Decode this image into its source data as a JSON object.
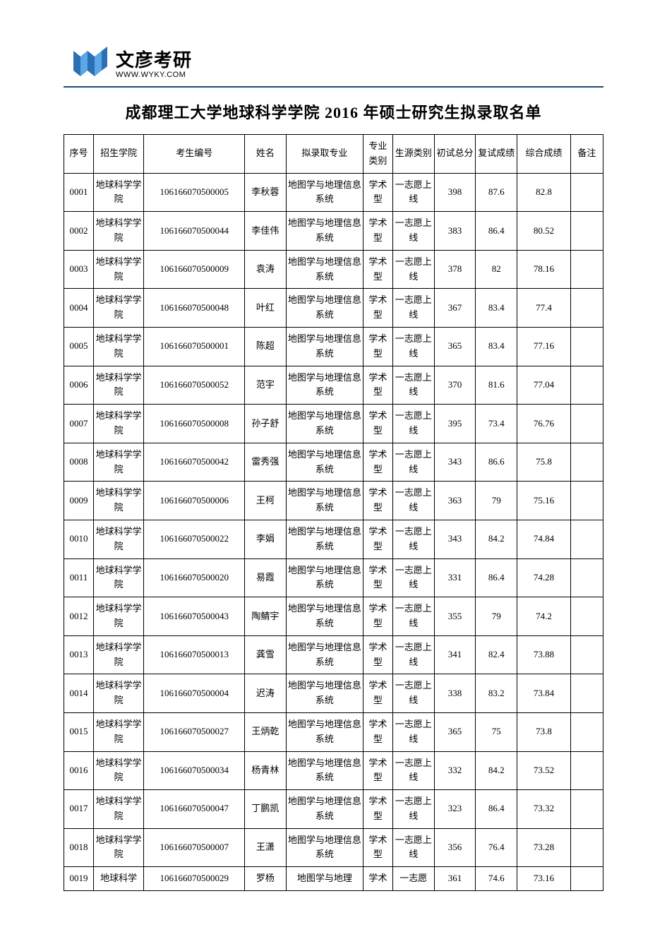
{
  "logo": {
    "cn": "文彦考研",
    "en": "WWW.WYKY.COM",
    "colors": {
      "primary": "#2b6fb5",
      "accent": "#5aa6e6",
      "dark": "#1a4a7a"
    }
  },
  "title": "成都理工大学地球科学学院 2016 年硕士研究生拟录取名单",
  "table": {
    "columns": [
      "序号",
      "招生学院",
      "考生编号",
      "姓名",
      "拟录取专业",
      "专业类别",
      "生源类别",
      "初试总分",
      "复试成绩",
      "综合成绩",
      "备注"
    ],
    "col_widths_pct": [
      5,
      8.5,
      17,
      7,
      13,
      5,
      7,
      7,
      7,
      9,
      5.5
    ],
    "header_fontsize": 13,
    "cell_fontsize": 13,
    "border_color": "#000000",
    "background": "#ffffff",
    "rows": [
      [
        "0001",
        "地球科学学院",
        "106166070500005",
        "李秋蓉",
        "地图学与地理信息系统",
        "学术型",
        "一志愿上线",
        "398",
        "87.6",
        "82.8",
        ""
      ],
      [
        "0002",
        "地球科学学院",
        "106166070500044",
        "李佳伟",
        "地图学与地理信息系统",
        "学术型",
        "一志愿上线",
        "383",
        "86.4",
        "80.52",
        ""
      ],
      [
        "0003",
        "地球科学学院",
        "106166070500009",
        "袁涛",
        "地图学与地理信息系统",
        "学术型",
        "一志愿上线",
        "378",
        "82",
        "78.16",
        ""
      ],
      [
        "0004",
        "地球科学学院",
        "106166070500048",
        "叶红",
        "地图学与地理信息系统",
        "学术型",
        "一志愿上线",
        "367",
        "83.4",
        "77.4",
        ""
      ],
      [
        "0005",
        "地球科学学院",
        "106166070500001",
        "陈超",
        "地图学与地理信息系统",
        "学术型",
        "一志愿上线",
        "365",
        "83.4",
        "77.16",
        ""
      ],
      [
        "0006",
        "地球科学学院",
        "106166070500052",
        "范宇",
        "地图学与地理信息系统",
        "学术型",
        "一志愿上线",
        "370",
        "81.6",
        "77.04",
        ""
      ],
      [
        "0007",
        "地球科学学院",
        "106166070500008",
        "孙子舒",
        "地图学与地理信息系统",
        "学术型",
        "一志愿上线",
        "395",
        "73.4",
        "76.76",
        ""
      ],
      [
        "0008",
        "地球科学学院",
        "106166070500042",
        "雷秀强",
        "地图学与地理信息系统",
        "学术型",
        "一志愿上线",
        "343",
        "86.6",
        "75.8",
        ""
      ],
      [
        "0009",
        "地球科学学院",
        "106166070500006",
        "王柯",
        "地图学与地理信息系统",
        "学术型",
        "一志愿上线",
        "363",
        "79",
        "75.16",
        ""
      ],
      [
        "0010",
        "地球科学学院",
        "106166070500022",
        "李娟",
        "地图学与地理信息系统",
        "学术型",
        "一志愿上线",
        "343",
        "84.2",
        "74.84",
        ""
      ],
      [
        "0011",
        "地球科学学院",
        "106166070500020",
        "易霞",
        "地图学与地理信息系统",
        "学术型",
        "一志愿上线",
        "331",
        "86.4",
        "74.28",
        ""
      ],
      [
        "0012",
        "地球科学学院",
        "106166070500043",
        "陶鲭宇",
        "地图学与地理信息系统",
        "学术型",
        "一志愿上线",
        "355",
        "79",
        "74.2",
        ""
      ],
      [
        "0013",
        "地球科学学院",
        "106166070500013",
        "龚雪",
        "地图学与地理信息系统",
        "学术型",
        "一志愿上线",
        "341",
        "82.4",
        "73.88",
        ""
      ],
      [
        "0014",
        "地球科学学院",
        "106166070500004",
        "迟涛",
        "地图学与地理信息系统",
        "学术型",
        "一志愿上线",
        "338",
        "83.2",
        "73.84",
        ""
      ],
      [
        "0015",
        "地球科学学院",
        "106166070500027",
        "王炳乾",
        "地图学与地理信息系统",
        "学术型",
        "一志愿上线",
        "365",
        "75",
        "73.8",
        ""
      ],
      [
        "0016",
        "地球科学学院",
        "106166070500034",
        "杨青林",
        "地图学与地理信息系统",
        "学术型",
        "一志愿上线",
        "332",
        "84.2",
        "73.52",
        ""
      ],
      [
        "0017",
        "地球科学学院",
        "106166070500047",
        "丁鹏凯",
        "地图学与地理信息系统",
        "学术型",
        "一志愿上线",
        "323",
        "86.4",
        "73.32",
        ""
      ],
      [
        "0018",
        "地球科学学院",
        "106166070500007",
        "王潇",
        "地图学与地理信息系统",
        "学术型",
        "一志愿上线",
        "356",
        "76.4",
        "73.28",
        ""
      ],
      [
        "0019",
        "地球科学",
        "106166070500029",
        "罗杨",
        "地图学与地理",
        "学术",
        "一志愿",
        "361",
        "74.6",
        "73.16",
        ""
      ]
    ]
  }
}
